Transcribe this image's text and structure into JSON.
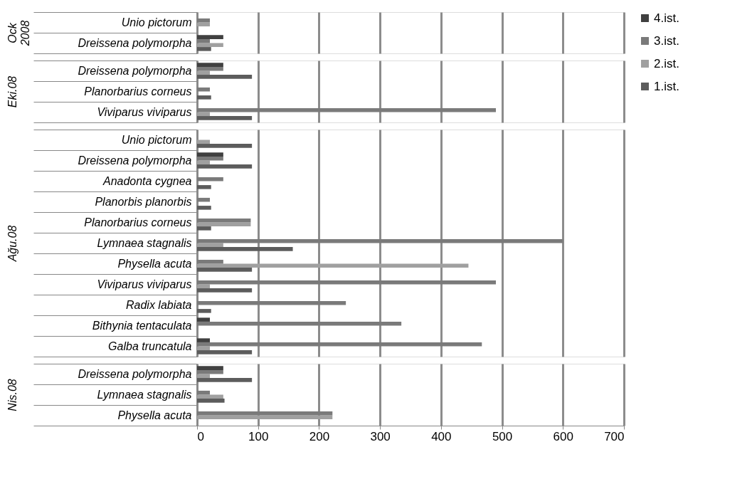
{
  "chart_data": [
    {
      "type": "bar",
      "orientation": "horizontal",
      "ylabel": "Ock 2008",
      "categories": [
        "Unio pictorum",
        "Dreissena polymorpha"
      ],
      "series": [
        {
          "name": "1.ist.",
          "color": "#5c5c5c",
          "values": [
            null,
            23
          ]
        },
        {
          "name": "2.ist.",
          "color": "#a0a0a0",
          "values": [
            21,
            43
          ]
        },
        {
          "name": "3.ist.",
          "color": "#7a7a7a",
          "values": [
            21,
            21
          ]
        },
        {
          "name": "4.ist.",
          "color": "#404040",
          "values": [
            null,
            43
          ]
        }
      ],
      "xlim": [
        0,
        700
      ],
      "xticks": [
        0,
        100,
        200,
        300,
        400,
        500,
        600,
        700
      ],
      "grid": "x",
      "legend": "right",
      "tick_labels": "y"
    },
    {
      "type": "bar",
      "orientation": "horizontal",
      "ylabel": "Eki.08",
      "categories": [
        "Dreissena polymorpha",
        "Planorbarius corneus",
        "Viviparus viviparus"
      ],
      "series": [
        {
          "name": "1.ist.",
          "color": "#5c5c5c",
          "values": [
            90,
            23,
            90
          ]
        },
        {
          "name": "2.ist.",
          "color": "#a0a0a0",
          "values": [
            21,
            null,
            21
          ]
        },
        {
          "name": "3.ist.",
          "color": "#7a7a7a",
          "values": [
            43,
            21,
            490
          ]
        },
        {
          "name": "4.ist.",
          "color": "#404040",
          "values": [
            43,
            null,
            null
          ]
        }
      ],
      "xlim": [
        0,
        700
      ],
      "xticks": [
        0,
        100,
        200,
        300,
        400,
        500,
        600,
        700
      ],
      "grid": "x",
      "legend": "right",
      "tick_labels": "y"
    },
    {
      "type": "bar",
      "orientation": "horizontal",
      "ylabel": "Ağu.08",
      "categories": [
        "Unio pictorum",
        "Dreissena polymorpha",
        "Anadonta cygnea",
        "Planorbis planorbis",
        "Planorbarius corneus",
        "Lymnaea stagnalis",
        "Physella acuta",
        "Viviparus viviparus",
        "Radix labiata",
        "Bithynia tentaculata",
        "Galba truncatula"
      ],
      "series": [
        {
          "name": "1.ist.",
          "color": "#5c5c5c",
          "values": [
            90,
            90,
            23,
            23,
            23,
            157,
            90,
            90,
            23,
            null,
            90
          ]
        },
        {
          "name": "2.ist.",
          "color": "#a0a0a0",
          "values": [
            21,
            21,
            null,
            null,
            88,
            43,
            445,
            21,
            null,
            null,
            21
          ]
        },
        {
          "name": "3.ist.",
          "color": "#7a7a7a",
          "values": [
            null,
            43,
            43,
            21,
            88,
            600,
            43,
            490,
            244,
            335,
            467
          ]
        },
        {
          "name": "4.ist.",
          "color": "#404040",
          "values": [
            null,
            43,
            null,
            null,
            null,
            null,
            null,
            null,
            null,
            21,
            21
          ]
        }
      ],
      "xlim": [
        0,
        700
      ],
      "xticks": [
        0,
        100,
        200,
        300,
        400,
        500,
        600,
        700
      ],
      "grid": "x",
      "legend": "right",
      "tick_labels": "y"
    },
    {
      "type": "bar",
      "orientation": "horizontal",
      "ylabel": "Nis.08",
      "categories": [
        "Dreissena polymorpha",
        "Lymnaea stagnalis",
        "Physella acuta"
      ],
      "series": [
        {
          "name": "1.ist.",
          "color": "#5c5c5c",
          "values": [
            90,
            45,
            null
          ]
        },
        {
          "name": "2.ist.",
          "color": "#a0a0a0",
          "values": [
            21,
            43,
            222
          ]
        },
        {
          "name": "3.ist.",
          "color": "#7a7a7a",
          "values": [
            43,
            21,
            222
          ]
        },
        {
          "name": "4.ist.",
          "color": "#404040",
          "values": [
            43,
            null,
            null
          ]
        }
      ],
      "xlim": [
        0,
        700
      ],
      "xticks": [
        0,
        100,
        200,
        300,
        400,
        500,
        600,
        700
      ],
      "grid": "x",
      "legend": "right"
    }
  ]
}
